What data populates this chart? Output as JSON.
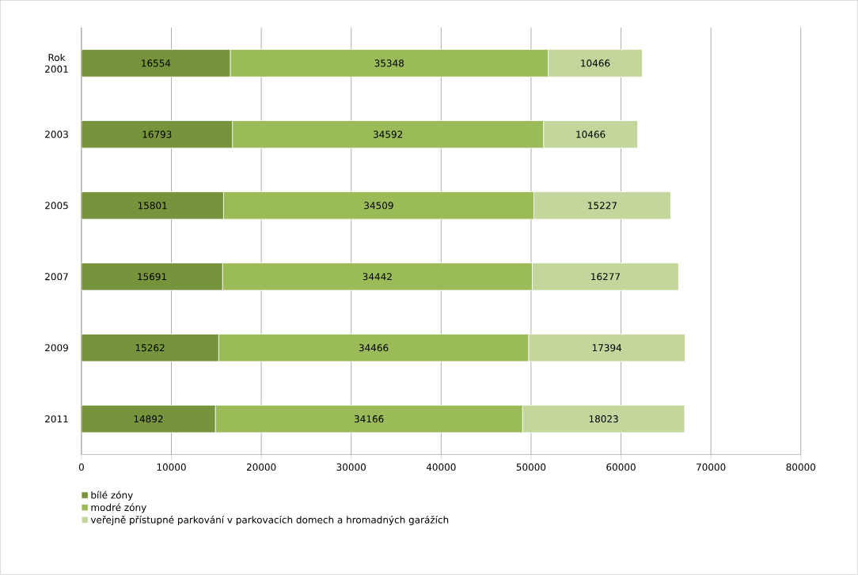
{
  "chart_data": {
    "type": "bar",
    "orientation": "horizontal",
    "stacked": true,
    "categories": [
      "Rok 2001",
      "2003",
      "2005",
      "2007",
      "2009",
      "2011"
    ],
    "series": [
      {
        "name": "bílé zóny",
        "color": "#77933c",
        "values": [
          16554,
          16793,
          15801,
          15691,
          15262,
          14892
        ]
      },
      {
        "name": "modré zóny",
        "color": "#9bbb59",
        "values": [
          35348,
          34592,
          34509,
          34442,
          34466,
          34166
        ]
      },
      {
        "name": "veřejně přístupné parkování v parkovacích domech a hromadných garážích",
        "color": "#c3d69b",
        "values": [
          10466,
          10466,
          15227,
          16277,
          17394,
          18023
        ]
      }
    ],
    "xlim": [
      0,
      80000
    ],
    "xticks": [
      0,
      10000,
      20000,
      30000,
      40000,
      50000,
      60000,
      70000,
      80000
    ],
    "grid": "x",
    "legend": "bottom",
    "data_labels": true
  }
}
